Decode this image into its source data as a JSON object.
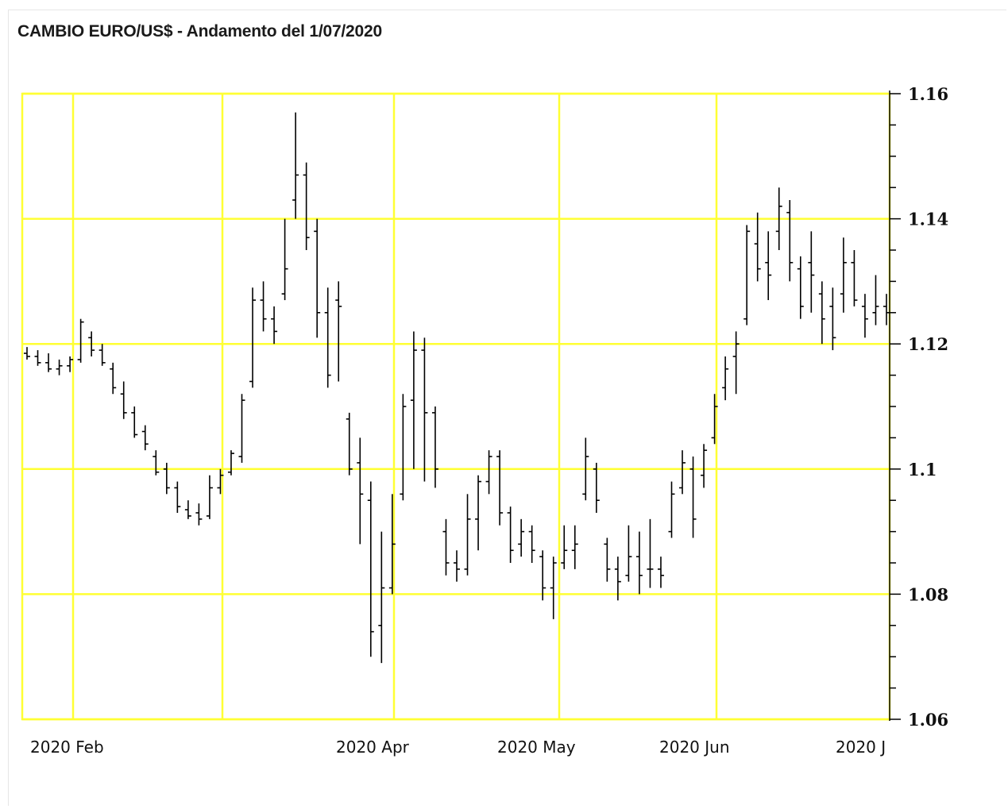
{
  "chart_data": {
    "type": "ohlc",
    "title": "CAMBIO EURO/US$ - Andamento del 1/07/2020",
    "xlabel": "",
    "ylabel": "",
    "ylim": [
      1.06,
      1.16
    ],
    "y_ticks": [
      {
        "label": "1.16",
        "value": 1.16
      },
      {
        "label": "1.14",
        "value": 1.14
      },
      {
        "label": "1.12",
        "value": 1.12
      },
      {
        "label": "1.1",
        "value": 1.1
      },
      {
        "label": "1.08",
        "value": 1.08
      },
      {
        "label": "1.06",
        "value": 1.06
      }
    ],
    "x_ticks": [
      "2020 Feb",
      "2020 Apr",
      "2020 May",
      "2020 Jun",
      "2020 J"
    ],
    "grid": true,
    "grid_color": "#ffff33",
    "bar_color": "#000000",
    "x_period": "late Jan 2020 – 1 Jul 2020 (daily)",
    "series": [
      {
        "values": [
          [
            1.1185,
            1.1195,
            1.1175,
            1.118
          ],
          [
            1.118,
            1.119,
            1.1165,
            1.117
          ],
          [
            1.117,
            1.1185,
            1.1155,
            1.116
          ],
          [
            1.116,
            1.1175,
            1.115,
            1.1165
          ],
          [
            1.1165,
            1.118,
            1.1155,
            1.1175
          ],
          [
            1.1175,
            1.124,
            1.117,
            1.1235
          ],
          [
            1.121,
            1.122,
            1.118,
            1.119
          ],
          [
            1.119,
            1.12,
            1.1165,
            1.117
          ],
          [
            1.116,
            1.117,
            1.112,
            1.113
          ],
          [
            1.112,
            1.114,
            1.108,
            1.109
          ],
          [
            1.109,
            1.11,
            1.105,
            1.1055
          ],
          [
            1.106,
            1.107,
            1.103,
            1.104
          ],
          [
            1.102,
            1.103,
            1.099,
            1.0995
          ],
          [
            1.1,
            1.101,
            1.096,
            1.097
          ],
          [
            1.097,
            1.098,
            1.093,
            1.094
          ],
          [
            1.0935,
            1.095,
            1.092,
            1.0925
          ],
          [
            1.093,
            1.0945,
            1.091,
            1.092
          ],
          [
            1.0925,
            1.099,
            1.092,
            1.097
          ],
          [
            1.097,
            1.1,
            1.096,
            1.099
          ],
          [
            1.0995,
            1.103,
            1.099,
            1.1025
          ],
          [
            1.102,
            1.112,
            1.101,
            1.111
          ],
          [
            1.114,
            1.129,
            1.113,
            1.127
          ],
          [
            1.127,
            1.13,
            1.122,
            1.124
          ],
          [
            1.124,
            1.126,
            1.12,
            1.122
          ],
          [
            1.128,
            1.14,
            1.127,
            1.132
          ],
          [
            1.143,
            1.157,
            1.14,
            1.147
          ],
          [
            1.147,
            1.149,
            1.135,
            1.137
          ],
          [
            1.138,
            1.14,
            1.121,
            1.125
          ],
          [
            1.125,
            1.129,
            1.113,
            1.115
          ],
          [
            1.127,
            1.13,
            1.114,
            1.126
          ],
          [
            1.108,
            1.109,
            1.099,
            1.1
          ],
          [
            1.101,
            1.105,
            1.088,
            1.096
          ],
          [
            1.095,
            1.098,
            1.07,
            1.074
          ],
          [
            1.075,
            1.09,
            1.069,
            1.081
          ],
          [
            1.081,
            1.096,
            1.08,
            1.088
          ],
          [
            1.096,
            1.112,
            1.095,
            1.11
          ],
          [
            1.111,
            1.122,
            1.1,
            1.119
          ],
          [
            1.119,
            1.121,
            1.098,
            1.109
          ],
          [
            1.109,
            1.11,
            1.097,
            1.1
          ],
          [
            1.09,
            1.092,
            1.083,
            1.085
          ],
          [
            1.085,
            1.087,
            1.082,
            1.084
          ],
          [
            1.084,
            1.096,
            1.083,
            1.092
          ],
          [
            1.092,
            1.099,
            1.087,
            1.098
          ],
          [
            1.098,
            1.103,
            1.096,
            1.102
          ],
          [
            1.102,
            1.103,
            1.091,
            1.093
          ],
          [
            1.093,
            1.094,
            1.085,
            1.087
          ],
          [
            1.088,
            1.092,
            1.086,
            1.09
          ],
          [
            1.09,
            1.091,
            1.085,
            1.087
          ],
          [
            1.086,
            1.087,
            1.079,
            1.081
          ],
          [
            1.081,
            1.086,
            1.076,
            1.085
          ],
          [
            1.085,
            1.091,
            1.084,
            1.087
          ],
          [
            1.087,
            1.091,
            1.084,
            1.088
          ],
          [
            1.096,
            1.105,
            1.095,
            1.102
          ],
          [
            1.1,
            1.101,
            1.093,
            1.095
          ],
          [
            1.088,
            1.089,
            1.082,
            1.084
          ],
          [
            1.084,
            1.086,
            1.079,
            1.082
          ],
          [
            1.083,
            1.091,
            1.082,
            1.086
          ],
          [
            1.086,
            1.09,
            1.08,
            1.083
          ],
          [
            1.084,
            1.092,
            1.081,
            1.084
          ],
          [
            1.084,
            1.086,
            1.081,
            1.083
          ],
          [
            1.09,
            1.098,
            1.089,
            1.096
          ],
          [
            1.097,
            1.103,
            1.096,
            1.101
          ],
          [
            1.1,
            1.102,
            1.089,
            1.092
          ],
          [
            1.099,
            1.104,
            1.097,
            1.103
          ],
          [
            1.105,
            1.112,
            1.104,
            1.11
          ],
          [
            1.113,
            1.118,
            1.111,
            1.116
          ],
          [
            1.118,
            1.122,
            1.112,
            1.12
          ],
          [
            1.124,
            1.139,
            1.123,
            1.138
          ],
          [
            1.136,
            1.141,
            1.13,
            1.132
          ],
          [
            1.133,
            1.138,
            1.127,
            1.131
          ],
          [
            1.138,
            1.145,
            1.135,
            1.142
          ],
          [
            1.141,
            1.143,
            1.13,
            1.133
          ],
          [
            1.132,
            1.134,
            1.124,
            1.126
          ],
          [
            1.133,
            1.138,
            1.125,
            1.131
          ],
          [
            1.128,
            1.13,
            1.12,
            1.124
          ],
          [
            1.126,
            1.129,
            1.119,
            1.121
          ],
          [
            1.128,
            1.137,
            1.125,
            1.133
          ],
          [
            1.133,
            1.135,
            1.126,
            1.127
          ],
          [
            1.126,
            1.128,
            1.121,
            1.124
          ],
          [
            1.125,
            1.131,
            1.123,
            1.126
          ],
          [
            1.126,
            1.128,
            1.123,
            1.125
          ]
        ]
      }
    ]
  }
}
